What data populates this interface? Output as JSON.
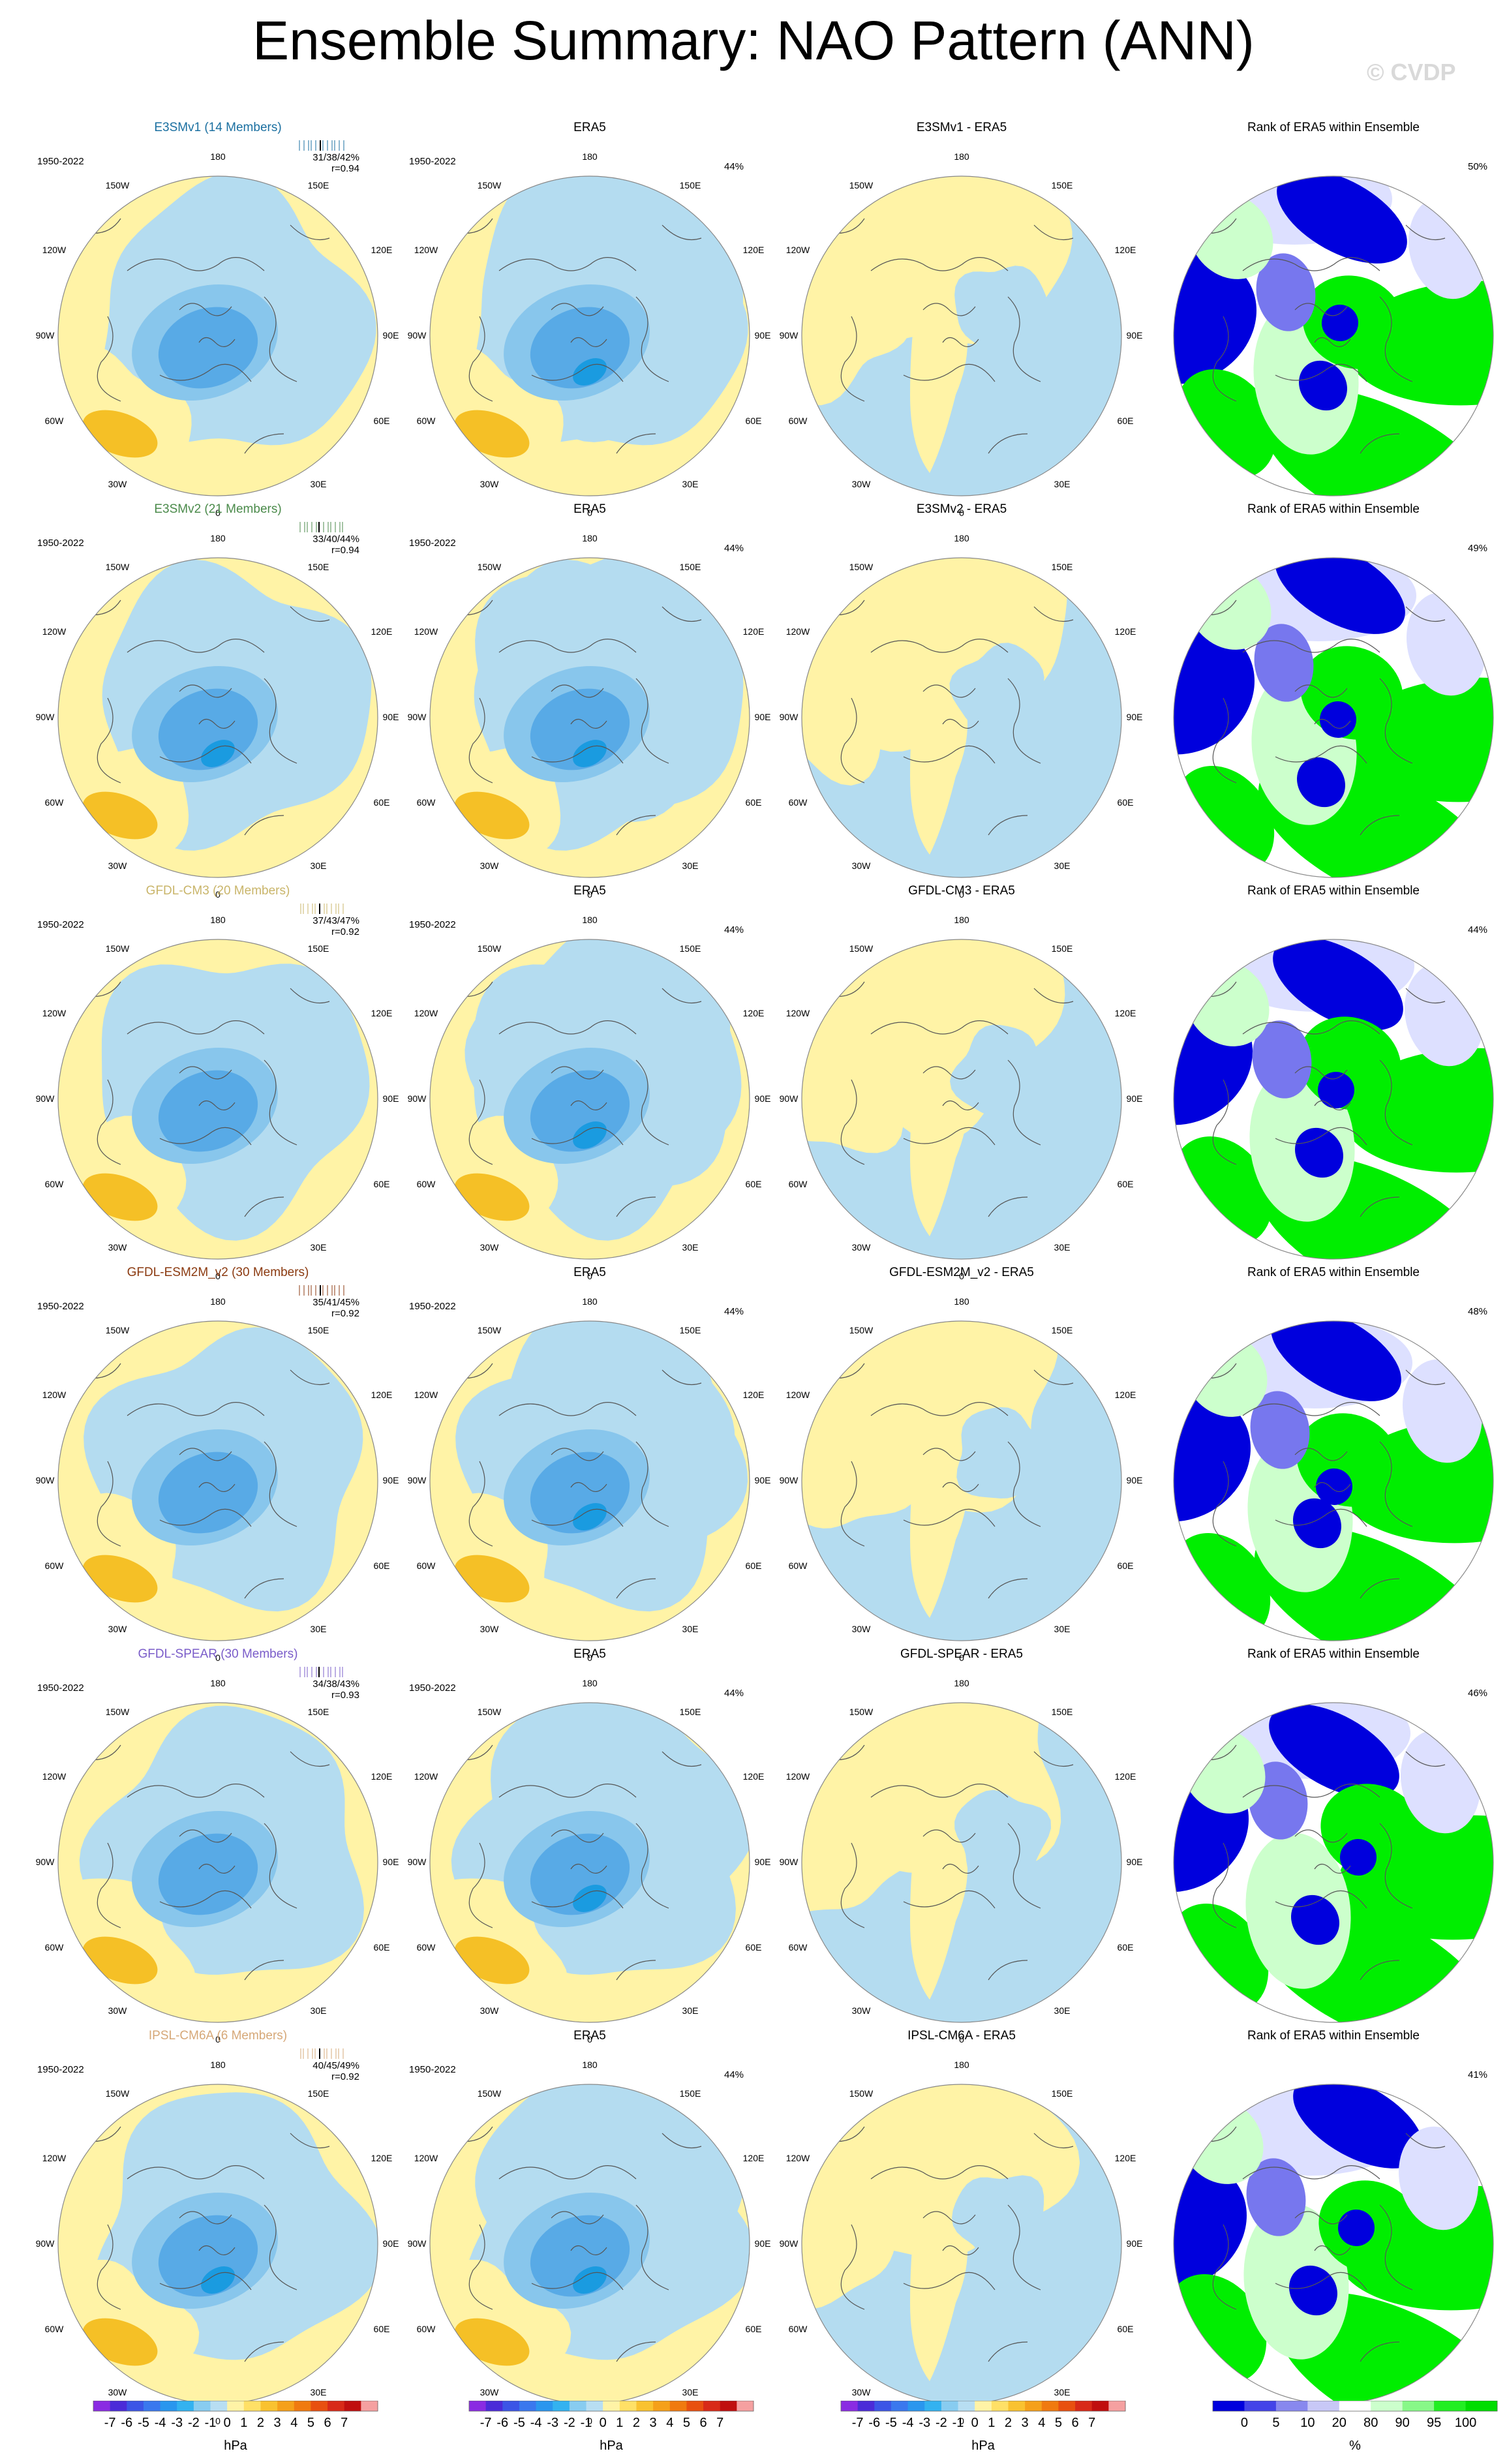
{
  "title": "Ensemble Summary: NAO Pattern (ANN)",
  "watermark": "© CVDP",
  "period": "1950-2022",
  "lon_labels": {
    "top": "180",
    "bottom": "0",
    "tl": "150W",
    "tr": "150E",
    "l1": "120W",
    "r1": "120E",
    "l2": "90W",
    "r2": "90E",
    "l3": "60W",
    "r3": "60E",
    "bl": "30W",
    "br": "30E"
  },
  "colors": {
    "blue_light": "#b4dcf0",
    "blue_mid": "#88c6ec",
    "blue_dark": "#58aae6",
    "blue_deep": "#1a9be0",
    "yellow_light": "#fff3a6",
    "orange": "#f5c026",
    "rank_blue": "#0000dd",
    "rank_pale": "#dde0ff",
    "rank_mid": "#7777ee",
    "rank_green": "#00ee00",
    "rank_palegreen": "#ccffcc"
  },
  "rows": [
    {
      "model": "E3SMv1 (14 Members)",
      "model_color": "#1a6fa0",
      "stat_pcts": "31/38/42%",
      "stat_r": "r=0.94",
      "era_pct": "44%",
      "diff_title": "E3SMv1 - ERA5",
      "rank_title": "Rank of ERA5 within Ensemble",
      "rank_pct": "50%"
    },
    {
      "model": "E3SMv2 (21 Members)",
      "model_color": "#4a8a4a",
      "stat_pcts": "33/40/44%",
      "stat_r": "r=0.94",
      "era_pct": "44%",
      "diff_title": "E3SMv2 - ERA5",
      "rank_title": "Rank of ERA5 within Ensemble",
      "rank_pct": "49%"
    },
    {
      "model": "GFDL-CM3 (20 Members)",
      "model_color": "#c9b56a",
      "stat_pcts": "37/43/47%",
      "stat_r": "r=0.92",
      "era_pct": "44%",
      "diff_title": "GFDL-CM3 - ERA5",
      "rank_title": "Rank of ERA5 within Ensemble",
      "rank_pct": "44%"
    },
    {
      "model": "GFDL-ESM2M_v2 (30 Members)",
      "model_color": "#8b3a10",
      "stat_pcts": "35/41/45%",
      "stat_r": "r=0.92",
      "era_pct": "44%",
      "diff_title": "GFDL-ESM2M_v2 - ERA5",
      "rank_title": "Rank of ERA5 within Ensemble",
      "rank_pct": "48%"
    },
    {
      "model": "GFDL-SPEAR (30 Members)",
      "model_color": "#7a5cc9",
      "stat_pcts": "34/38/43%",
      "stat_r": "r=0.93",
      "era_pct": "44%",
      "diff_title": "GFDL-SPEAR - ERA5",
      "rank_title": "Rank of ERA5 within Ensemble",
      "rank_pct": "46%"
    },
    {
      "model": "IPSL-CM6A (6 Members)",
      "model_color": "#d6a878",
      "stat_pcts": "40/45/49%",
      "stat_r": "r=0.92",
      "era_pct": "44%",
      "diff_title": "IPSL-CM6A - ERA5",
      "rank_title": "Rank of ERA5 within Ensemble",
      "rank_pct": "41%"
    }
  ],
  "era_title": "ERA5",
  "colorbar_hpa": {
    "labels": [
      "-7",
      "-6",
      "-5",
      "-4",
      "-3",
      "-2",
      "-1",
      "0",
      "1",
      "2",
      "3",
      "4",
      "5",
      "6",
      "7"
    ],
    "units": "hPa",
    "colors": [
      "#8a2be2",
      "#4b2bd8",
      "#3c55e6",
      "#3a78ee",
      "#2a96ee",
      "#33b2f0",
      "#88ccf0",
      "#b8def2",
      "#fff3a6",
      "#ffe066",
      "#f9c230",
      "#f5a01a",
      "#f07a10",
      "#e85010",
      "#d82a18",
      "#c00f0f",
      "#f5a0a0"
    ]
  },
  "colorbar_rank": {
    "labels": [
      "0",
      "5",
      "10",
      "20",
      "80",
      "90",
      "95",
      "100"
    ],
    "units": "%",
    "colors": [
      "#0000dd",
      "#4444e8",
      "#8888ee",
      "#c8c8f6",
      "#ffffff",
      "#ccffcc",
      "#88f888",
      "#22ee22",
      "#00dd00"
    ]
  }
}
